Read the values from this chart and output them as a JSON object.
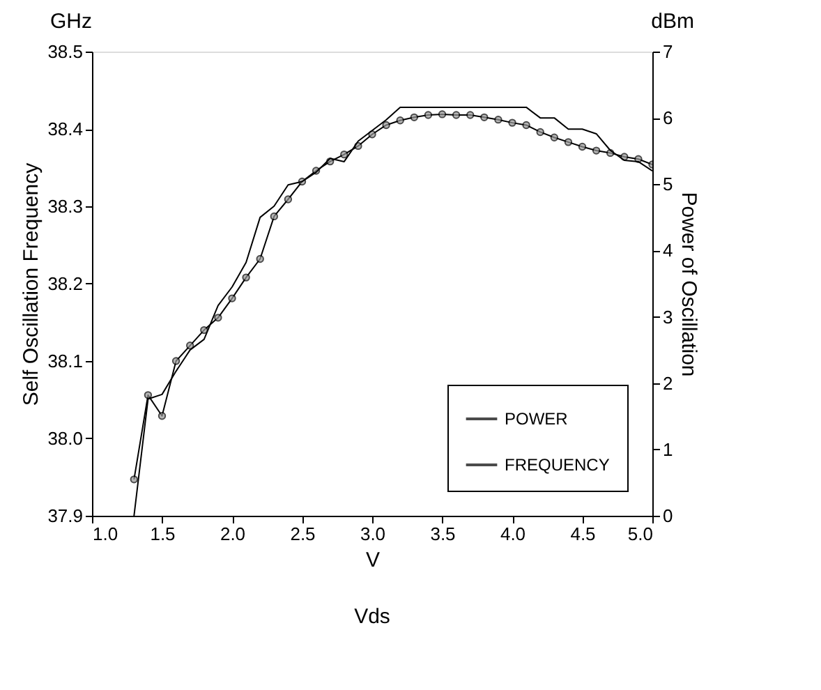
{
  "chart_data": {
    "type": "line",
    "xlabel": "V",
    "ylabel": "Self Oscillation Frequency",
    "y2label": "Power of Oscillation",
    "annotations": [
      "GHz",
      "dBm",
      "Vds"
    ],
    "xlim": [
      1.0,
      5.0
    ],
    "xticks": [
      {
        "value": 1.0,
        "label": "1.0"
      },
      {
        "value": 1.5,
        "label": "1.5"
      },
      {
        "value": 2.0,
        "label": "2.0"
      },
      {
        "value": 2.5,
        "label": "2.5"
      },
      {
        "value": 3.0,
        "label": "3.0"
      },
      {
        "value": 3.5,
        "label": "3.5"
      },
      {
        "value": 4.0,
        "label": "4.0"
      },
      {
        "value": 4.5,
        "label": "4.5"
      },
      {
        "value": 5.0,
        "label": "5.0"
      }
    ],
    "ylim": [
      37.9,
      38.5
    ],
    "yticks": [
      {
        "value": 37.9,
        "label": "37.9"
      },
      {
        "value": 38.0,
        "label": "38.0"
      },
      38.1,
      38.2,
      38.3,
      38.4,
      38.5
    ],
    "y2lim": [
      0,
      7
    ],
    "y2ticks": [
      0,
      1,
      2,
      3,
      4,
      5,
      6,
      7
    ],
    "grid": false,
    "legend": "bottom right",
    "series": [
      {
        "name": "POWER",
        "color": "#000000",
        "axis": "y2",
        "marker": "none",
        "x": [
          1.3,
          1.4,
          1.5,
          1.6,
          1.7,
          1.8,
          1.9,
          2.0,
          2.1,
          2.2,
          2.3,
          2.4,
          2.5,
          2.6,
          2.7,
          2.8,
          2.9,
          3.0,
          3.1,
          3.2,
          3.3,
          3.4,
          3.5,
          3.6,
          3.7,
          3.8,
          3.9,
          4.0,
          4.1,
          4.2,
          4.3,
          4.4,
          4.5,
          4.6,
          4.7,
          4.8,
          4.9,
          5.0
        ],
        "values": [
          0.0,
          1.76,
          1.83,
          2.18,
          2.5,
          2.66,
          3.17,
          3.45,
          3.82,
          4.5,
          4.67,
          4.99,
          5.04,
          5.18,
          5.39,
          5.34,
          5.65,
          5.81,
          5.97,
          6.16,
          6.16,
          6.16,
          6.16,
          6.16,
          6.16,
          6.16,
          6.16,
          6.16,
          6.16,
          6.0,
          6.0,
          5.83,
          5.83,
          5.76,
          5.51,
          5.36,
          5.34,
          5.2
        ]
      },
      {
        "name": "FREQUENCY",
        "color": "#000000",
        "marker": "circle",
        "x": [
          1.3,
          1.4,
          1.5,
          1.6,
          1.7,
          1.8,
          1.9,
          2.0,
          2.1,
          2.2,
          2.3,
          2.4,
          2.5,
          2.6,
          2.7,
          2.8,
          2.9,
          3.0,
          3.1,
          3.2,
          3.3,
          3.4,
          3.5,
          3.6,
          3.7,
          3.8,
          3.9,
          4.0,
          4.1,
          4.2,
          4.3,
          4.4,
          4.5,
          4.6,
          4.7,
          4.8,
          4.9,
          5.0
        ],
        "values": [
          37.947,
          38.056,
          38.029,
          38.1,
          38.12,
          38.14,
          38.156,
          38.181,
          38.208,
          38.232,
          38.287,
          38.309,
          38.332,
          38.346,
          38.358,
          38.367,
          38.378,
          38.393,
          38.405,
          38.411,
          38.415,
          38.418,
          38.419,
          38.418,
          38.418,
          38.415,
          38.412,
          38.408,
          38.405,
          38.396,
          38.389,
          38.383,
          38.377,
          38.372,
          38.369,
          38.364,
          38.361,
          38.354
        ]
      }
    ]
  }
}
